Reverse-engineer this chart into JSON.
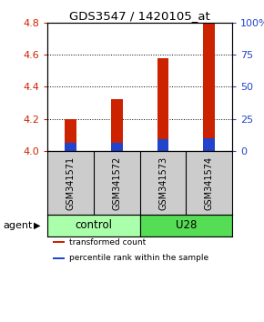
{
  "title": "GDS3547 / 1420105_at",
  "samples": [
    "GSM341571",
    "GSM341572",
    "GSM341573",
    "GSM341574"
  ],
  "red_values": [
    4.2,
    4.32,
    4.58,
    4.8
  ],
  "blue_values": [
    4.05,
    4.05,
    4.07,
    4.08
  ],
  "red_base": 4.0,
  "ylim": [
    4.0,
    4.8
  ],
  "yticks": [
    4.0,
    4.2,
    4.4,
    4.6,
    4.8
  ],
  "y2labels": [
    "0",
    "25",
    "50",
    "75",
    "100%"
  ],
  "groups": [
    {
      "label": "control",
      "samples": [
        0,
        1
      ],
      "color": "#aaffaa"
    },
    {
      "label": "U28",
      "samples": [
        2,
        3
      ],
      "color": "#55dd55"
    }
  ],
  "agent_label": "agent",
  "bar_width": 0.25,
  "red_color": "#cc2200",
  "blue_color": "#2244cc",
  "title_color": "#000000",
  "left_tick_color": "#cc2200",
  "right_tick_color": "#2244cc",
  "legend_items": [
    {
      "color": "#cc2200",
      "label": "transformed count"
    },
    {
      "color": "#2244cc",
      "label": "percentile rank within the sample"
    }
  ],
  "sample_area_color": "#cccccc",
  "sample_border_color": "#000000"
}
